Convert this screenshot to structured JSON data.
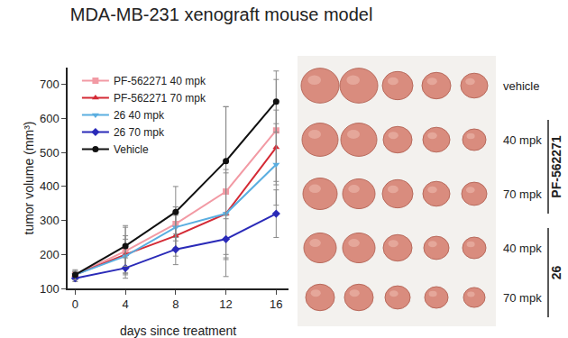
{
  "chart_data": {
    "type": "line",
    "title": "MDA-MB-231 xenograft mouse model",
    "x_label": "days since treatment",
    "y_label": "tumor volume (mm³)",
    "x": [
      0,
      4,
      8,
      12,
      16
    ],
    "xlim": [
      -0.6,
      17
    ],
    "xticks": [
      0,
      4,
      8,
      12,
      16
    ],
    "ylim": [
      100,
      750
    ],
    "yticks": [
      100,
      200,
      300,
      400,
      500,
      600,
      700
    ],
    "grid": false,
    "legend": "top left",
    "series": [
      {
        "name": "PF-562271 40 mpk",
        "color": "#f29aa4",
        "marker": "square",
        "values": [
          140,
          210,
          290,
          385,
          565
        ],
        "errors": [
          10,
          70,
          50,
          250,
          150
        ]
      },
      {
        "name": "PF-562271 70 mpk",
        "color": "#d42a35",
        "marker": "triangle-up",
        "values": [
          140,
          200,
          255,
          320,
          515
        ],
        "errors": [
          10,
          55,
          60,
          120,
          110
        ]
      },
      {
        "name": "26 40 mpk",
        "color": "#5aaee0",
        "marker": "triangle-down",
        "values": [
          140,
          195,
          280,
          320,
          465
        ],
        "errors": [
          10,
          50,
          60,
          130,
          120
        ]
      },
      {
        "name": "26 70 mpk",
        "color": "#2a2ab8",
        "marker": "diamond",
        "values": [
          130,
          160,
          215,
          245,
          320
        ],
        "errors": [
          10,
          30,
          45,
          60,
          70
        ]
      },
      {
        "name": "Vehicle",
        "color": "#111111",
        "marker": "circle",
        "values": [
          140,
          225,
          325,
          475,
          650
        ],
        "errors": [
          15,
          60,
          75,
          160,
          90
        ]
      }
    ]
  },
  "image_panel": {
    "rows": [
      "vehicle",
      "40 mpk",
      "70 mpk",
      "40 mpk",
      "70 mpk"
    ],
    "groups": [
      {
        "label": "PF-562271",
        "rows": [
          1,
          2
        ]
      },
      {
        "label": "26",
        "rows": [
          3,
          4
        ]
      }
    ]
  }
}
